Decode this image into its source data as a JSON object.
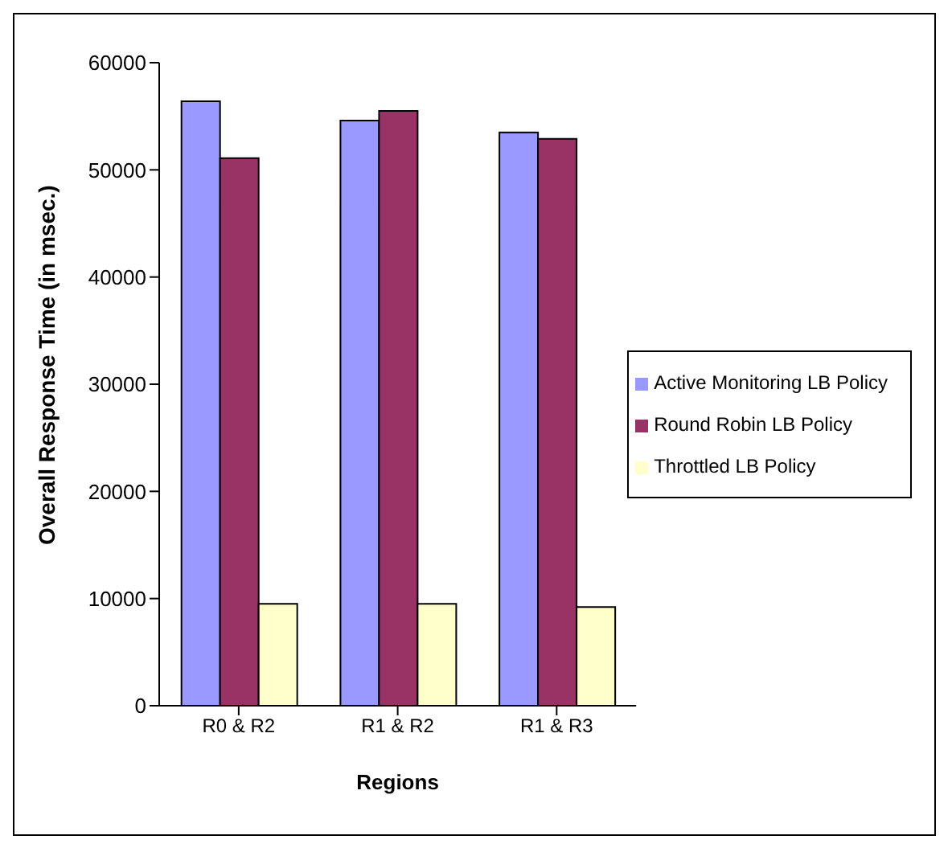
{
  "chart_data": {
    "type": "bar",
    "xlabel": "Regions",
    "ylabel": "Overall Response Time (in msec.)",
    "categories": [
      "R0 & R2",
      "R1 & R2",
      "R1 & R3"
    ],
    "series": [
      {
        "name": "Active Monitoring LB Policy",
        "color": "#9999ff",
        "values": [
          56400,
          54600,
          53500
        ]
      },
      {
        "name": "Round Robin LB Policy",
        "color": "#993366",
        "values": [
          51100,
          55500,
          52900
        ]
      },
      {
        "name": "Throttled LB Policy",
        "color": "#ffffcc",
        "values": [
          9500,
          9500,
          9200
        ]
      }
    ],
    "ylim": [
      0,
      60000
    ],
    "yticks": [
      0,
      10000,
      20000,
      30000,
      40000,
      50000,
      60000
    ],
    "grid": false,
    "legend": "right"
  }
}
